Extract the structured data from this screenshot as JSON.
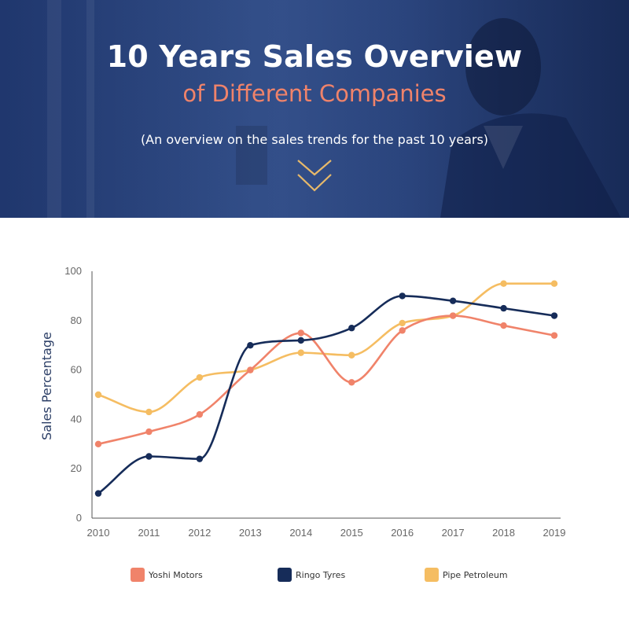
{
  "header": {
    "title": "10 Years Sales Overview",
    "subtitle": "of Different Companies",
    "note": "(An overview on the sales trends for the past 10 years)",
    "icon": "double-chevron-down-icon",
    "colors": {
      "background": "#2a4683",
      "title": "#ffffff",
      "subtitle": "#f0836a",
      "chevron": "#e7b96a"
    }
  },
  "chart_data": {
    "type": "line",
    "title": "",
    "xlabel": "",
    "ylabel": "Sales Percentage",
    "categories": [
      "2010",
      "2011",
      "2012",
      "2013",
      "2014",
      "2015",
      "2016",
      "2017",
      "2018",
      "2019"
    ],
    "ylim": [
      0,
      100
    ],
    "yticks": [
      "0",
      "20",
      "40",
      "60",
      "80",
      "100"
    ],
    "grid": false,
    "smooth": true,
    "legend_position": "bottom",
    "series": [
      {
        "name": "Yoshi Motors",
        "color": "#f0836a",
        "values": [
          30,
          35,
          42,
          60,
          75,
          55,
          76,
          82,
          78,
          74
        ]
      },
      {
        "name": "Ringo Tyres",
        "color": "#162c59",
        "values": [
          10,
          25,
          24,
          70,
          72,
          77,
          90,
          88,
          85,
          82
        ]
      },
      {
        "name": "Pipe Petroleum",
        "color": "#f5bd62",
        "values": [
          50,
          43,
          57,
          60,
          67,
          66,
          79,
          82,
          95,
          95
        ]
      }
    ]
  }
}
